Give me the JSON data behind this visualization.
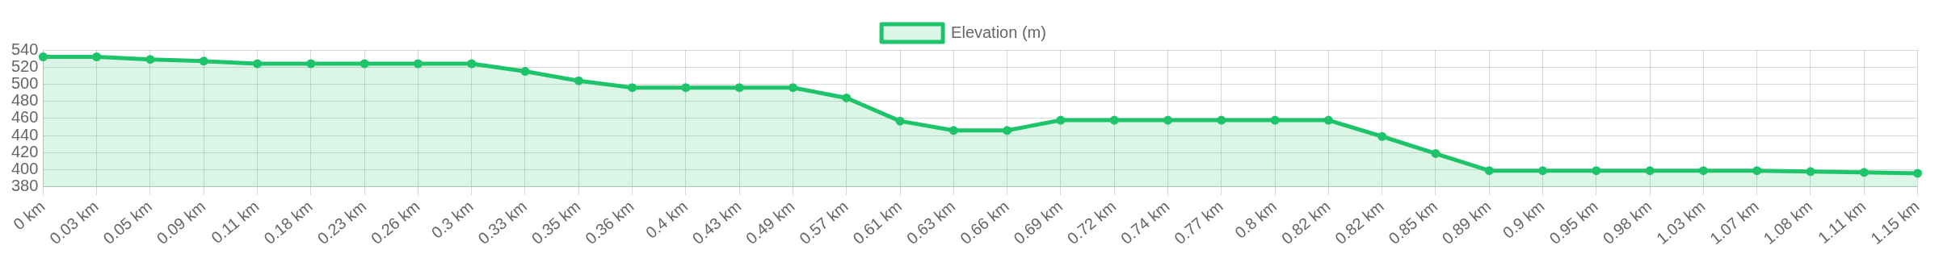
{
  "chart_data": {
    "type": "area",
    "categories": [
      "0 km",
      "0.03 km",
      "0.05 km",
      "0.09 km",
      "0.11 km",
      "0.18 km",
      "0.23 km",
      "0.26 km",
      "0.3 km",
      "0.33 km",
      "0.35 km",
      "0.36 km",
      "0.4 km",
      "0.43 km",
      "0.49 km",
      "0.57 km",
      "0.61 km",
      "0.63 km",
      "0.66 km",
      "0.69 km",
      "0.72 km",
      "0.74 km",
      "0.77 km",
      "0.8 km",
      "0.82 km",
      "0.82 km",
      "0.85 km",
      "0.89 km",
      "0.9 km",
      "0.95 km",
      "0.98 km",
      "1.03 km",
      "1.07 km",
      "1.08 km",
      "1.11 km",
      "1.15 km"
    ],
    "series": [
      {
        "name": "Elevation (m)",
        "color": "#1ec46a",
        "values": [
          532,
          532,
          529,
          527,
          524,
          524,
          524,
          524,
          524,
          515,
          504,
          496,
          496,
          496,
          496,
          484,
          457,
          446,
          446,
          458,
          458,
          458,
          458,
          458,
          458,
          439,
          419,
          399,
          399,
          399,
          399,
          399,
          399,
          398,
          397,
          396
        ]
      }
    ],
    "ylim": [
      380,
      540
    ],
    "yticks": [
      380,
      400,
      420,
      440,
      460,
      480,
      500,
      520,
      540
    ],
    "grid": true,
    "legend": "top",
    "marker": "circle",
    "line_style": "solid"
  }
}
